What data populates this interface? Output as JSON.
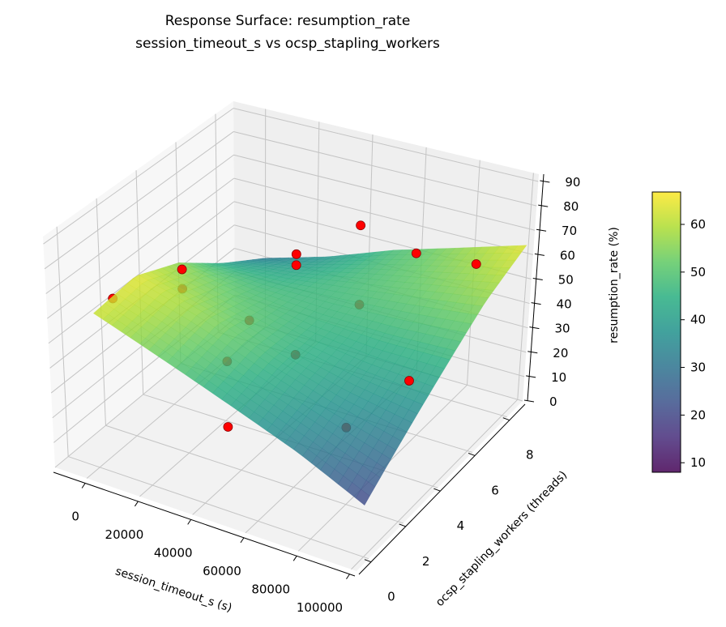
{
  "chart_data": {
    "type": "surface3d",
    "title": [
      "Response Surface: resumption_rate",
      "session_timeout_s vs ocsp_stapling_workers"
    ],
    "xlabel": "session_timeout_s (s)",
    "ylabel": "ocsp_stapling_workers (threads)",
    "zlabel": "resumption_rate (%)",
    "xlim": [
      -12000,
      102000
    ],
    "ylim": [
      -0.7,
      8.9
    ],
    "zlim": [
      0,
      93
    ],
    "xticks": [
      0,
      20000,
      40000,
      60000,
      80000,
      100000
    ],
    "xtick_labels": [
      "0",
      "20000",
      "40000",
      "60000",
      "80000",
      "100000"
    ],
    "yticks": [
      0,
      2,
      4,
      6,
      8
    ],
    "ytick_labels": [
      "0",
      "2",
      "4",
      "6",
      "8"
    ],
    "zticks": [
      0,
      10,
      20,
      30,
      40,
      50,
      60,
      70,
      80,
      90
    ],
    "ztick_labels": [
      "0",
      "10",
      "20",
      "30",
      "40",
      "50",
      "60",
      "70",
      "80",
      "90"
    ],
    "grid": true,
    "colormap": "viridis",
    "surface": {
      "x": [
        0,
        25000,
        50000,
        75000,
        100000
      ],
      "y": [
        0,
        2.2,
        4.4,
        6.6,
        8.8
      ],
      "z": [
        [
          62,
          52,
          42,
          32,
          20
        ],
        [
          64,
          56,
          46,
          38,
          32
        ],
        [
          56,
          50,
          46,
          44,
          44
        ],
        [
          42,
          44,
          48,
          52,
          56
        ],
        [
          30,
          38,
          48,
          56,
          64
        ]
      ]
    },
    "points": [
      {
        "x": 42700,
        "y": 8,
        "z": 61.5,
        "above_surface": true
      },
      {
        "x": 32700,
        "y": 6,
        "z": 59.5,
        "above_surface": true
      },
      {
        "x": 32700,
        "y": 6,
        "z": 55,
        "above_surface": true
      },
      {
        "x": 64000,
        "y": 8,
        "z": 56,
        "above_surface": true
      },
      {
        "x": 4100,
        "y": 4,
        "z": 57,
        "above_surface": true
      },
      {
        "x": 86700,
        "y": 8,
        "z": 58,
        "above_surface": true
      },
      {
        "x": 0,
        "y": 1,
        "z": 62,
        "above_surface": false
      },
      {
        "x": 4100,
        "y": 4,
        "z": 49,
        "above_surface": false
      },
      {
        "x": 29200,
        "y": 4,
        "z": 44,
        "above_surface": false
      },
      {
        "x": 56700,
        "y": 6,
        "z": 46,
        "above_surface": false
      },
      {
        "x": 20700,
        "y": 4,
        "z": 24.5,
        "above_surface": false
      },
      {
        "x": 32700,
        "y": 6,
        "z": 18,
        "above_surface": false
      },
      {
        "x": 76500,
        "y": 6,
        "z": 21,
        "above_surface": true
      },
      {
        "x": 42000,
        "y": 1,
        "z": 24.5,
        "above_surface": true
      },
      {
        "x": 86150,
        "y": 1,
        "z": 39,
        "above_surface": false
      }
    ],
    "point_color": "#ff0000",
    "colorbar": {
      "min": 8,
      "max": 66.8,
      "ticks": [
        10,
        20,
        30,
        40,
        50,
        60
      ],
      "tick_labels": [
        "10",
        "20",
        "30",
        "40",
        "50",
        "60"
      ]
    }
  }
}
